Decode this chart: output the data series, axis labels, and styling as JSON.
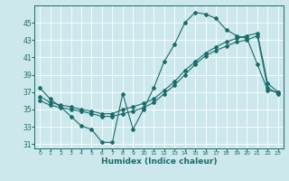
{
  "xlabel": "Humidex (Indice chaleur)",
  "bg_color": "#cce8ec",
  "line_color": "#1a6b6b",
  "grid_color": "#ffffff",
  "x_hours": [
    0,
    1,
    2,
    3,
    4,
    5,
    6,
    7,
    8,
    9,
    10,
    11,
    12,
    13,
    14,
    15,
    16,
    17,
    18,
    19,
    20,
    21,
    22,
    23
  ],
  "line1": [
    37.5,
    36.2,
    35.3,
    34.2,
    33.1,
    32.7,
    31.2,
    31.2,
    36.8,
    32.7,
    35.0,
    37.5,
    40.5,
    42.5,
    45.0,
    46.2,
    46.0,
    45.5,
    44.2,
    43.5,
    43.2,
    40.2,
    37.2,
    37.0
  ],
  "line2": [
    36.5,
    35.8,
    35.5,
    35.3,
    35.0,
    34.8,
    34.5,
    34.5,
    35.0,
    35.3,
    35.7,
    36.2,
    37.2,
    38.2,
    39.5,
    40.5,
    41.5,
    42.2,
    42.8,
    43.2,
    43.5,
    43.8,
    38.0,
    37.0
  ],
  "line3": [
    36.0,
    35.5,
    35.2,
    35.0,
    34.8,
    34.5,
    34.2,
    34.2,
    34.5,
    34.8,
    35.2,
    35.8,
    36.8,
    37.8,
    39.0,
    40.2,
    41.2,
    41.8,
    42.3,
    42.8,
    43.0,
    43.5,
    37.5,
    36.8
  ],
  "yticks": [
    31,
    33,
    35,
    37,
    39,
    41,
    43,
    45
  ],
  "ylim": [
    30.5,
    47.0
  ],
  "xlim": [
    -0.5,
    23.5
  ],
  "xtick_labels": [
    "0",
    "1",
    "2",
    "3",
    "4",
    "5",
    "6",
    "7",
    "8",
    "9",
    "10",
    "11",
    "12",
    "13",
    "14",
    "15",
    "16",
    "17",
    "18",
    "19",
    "20",
    "21",
    "22",
    "23"
  ]
}
